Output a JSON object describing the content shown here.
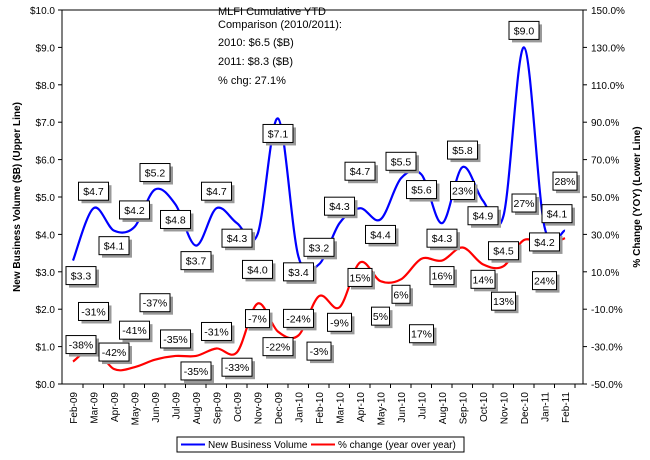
{
  "chart_data": {
    "type": "line",
    "annotation": {
      "title": "MLFI Cumulative YTD Comparison (2010/2011):",
      "line1": "2010: $6.5 ($B)",
      "line2": "2011: $8.3 ($B)",
      "line3": "% chg: 27.1%"
    },
    "categories": [
      "Feb-09",
      "Mar-09",
      "Apr-09",
      "May-09",
      "Jun-09",
      "Jul-09",
      "Aug-09",
      "Sep-09",
      "Oct-09",
      "Nov-09",
      "Dec-09",
      "Jan-10",
      "Feb-10",
      "Mar-10",
      "Apr-10",
      "May-10",
      "Jun-10",
      "Jul-10",
      "Aug-10",
      "Sep-10",
      "Oct-10",
      "Nov-10",
      "Dec-10",
      "Jan-11",
      "Feb-11"
    ],
    "ylabel": "New Business Volume ($B) (Upper Line)",
    "y2label": "% Change (YOY) (Lower Line)",
    "ylim": [
      0,
      10
    ],
    "y2lim": [
      -50,
      150
    ],
    "yticks": [
      "$0.0",
      "$1.0",
      "$2.0",
      "$3.0",
      "$4.0",
      "$5.0",
      "$6.0",
      "$7.0",
      "$8.0",
      "$9.0",
      "$10.0"
    ],
    "y2ticks": [
      "-50.0%",
      "-30.0%",
      "-10.0%",
      "10.0%",
      "30.0%",
      "50.0%",
      "70.0%",
      "90.0%",
      "110.0%",
      "130.0%",
      "150.0%"
    ],
    "grid": false,
    "legend_position": "bottom",
    "series": [
      {
        "name": "New Business Volume",
        "axis": "left",
        "color": "#0000ff",
        "values": [
          3.3,
          4.7,
          4.1,
          4.2,
          5.2,
          4.8,
          3.7,
          4.7,
          4.3,
          4.0,
          7.1,
          3.4,
          3.2,
          4.3,
          4.7,
          4.4,
          5.5,
          5.6,
          4.3,
          5.8,
          4.9,
          4.5,
          9.0,
          4.2,
          4.1
        ],
        "labels": [
          "$3.3",
          "$4.7",
          "$4.1",
          "$4.2",
          "$5.2",
          "$4.8",
          "$3.7",
          "$4.7",
          "$4.3",
          "$4.0",
          "$7.1",
          "$3.4",
          "$3.2",
          "$4.3",
          "$4.7",
          "$4.4",
          "$5.5",
          "$5.6",
          "$4.3",
          "$5.8",
          "$4.9",
          "$4.5",
          "$9.0",
          "$4.2",
          "$4.1"
        ]
      },
      {
        "name": "% change (year over year)",
        "axis": "right",
        "color": "#ff0000",
        "values": [
          -38,
          -31,
          -42,
          -41,
          -37,
          -35,
          -35,
          -31,
          -33,
          -7,
          -22,
          -24,
          -3,
          -9,
          15,
          5,
          6,
          17,
          16,
          23,
          14,
          13,
          27,
          24,
          28
        ],
        "labels": [
          "-38%",
          "-31%",
          "-42%",
          "-41%",
          "-37%",
          "-35%",
          "-35%",
          "-31%",
          "-33%",
          "-7%",
          "-22%",
          "-24%",
          "-3%",
          "-9%",
          "15%",
          "5%",
          "6%",
          "17%",
          "16%",
          "23%",
          "14%",
          "13%",
          "27%",
          "24%",
          "28%"
        ]
      }
    ]
  }
}
